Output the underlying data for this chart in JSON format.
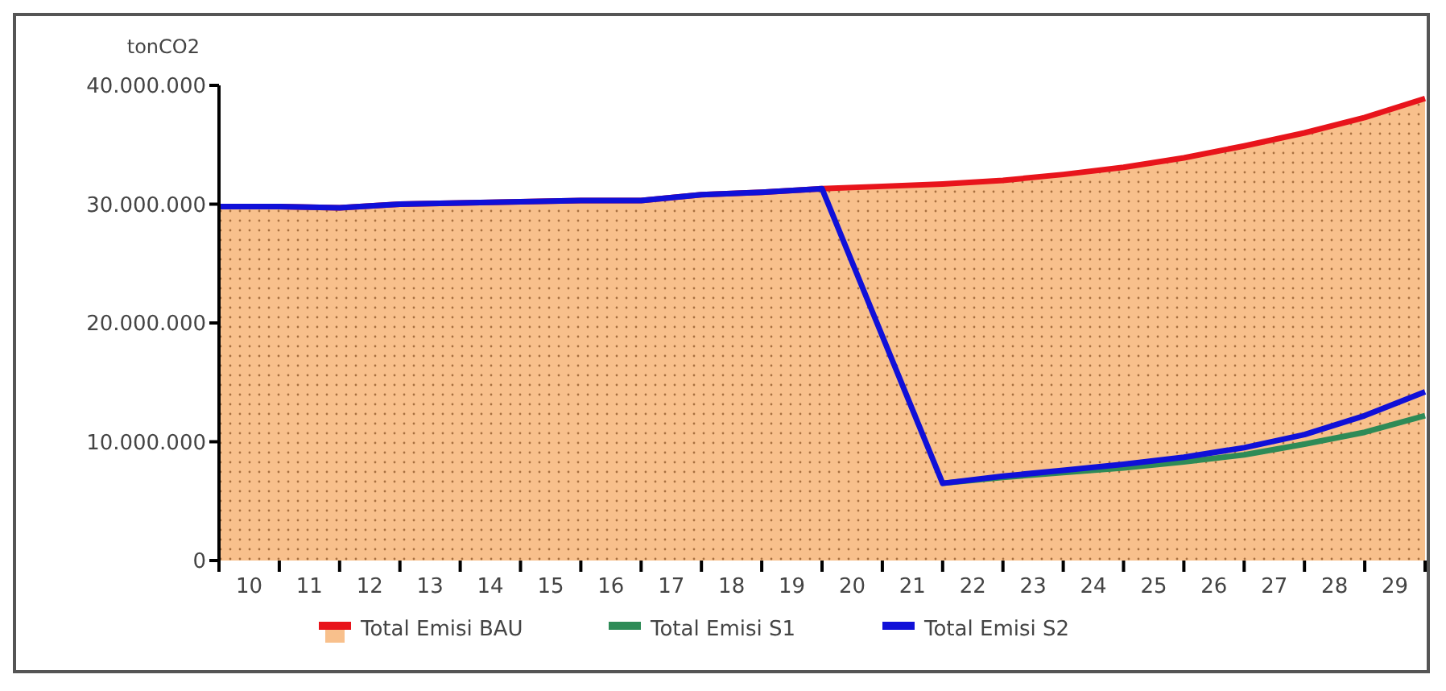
{
  "chart_data": {
    "type": "line",
    "ylabel": "tonCO2",
    "xlim": [
      9.5,
      29.5
    ],
    "x": [
      9.5,
      10.5,
      11.5,
      12.5,
      13.5,
      14.5,
      15.5,
      16.5,
      17.5,
      18.5,
      19.5,
      20.5,
      21.5,
      22.5,
      23.5,
      24.5,
      25.5,
      26.5,
      27.5,
      28.5,
      29.5
    ],
    "xticks": [
      {
        "value": 9.5,
        "label": null
      },
      10,
      {
        "value": 10.5,
        "label": null
      },
      11,
      {
        "value": 11.5,
        "label": null
      },
      12,
      {
        "value": 12.5,
        "label": null
      },
      13,
      {
        "value": 13.5,
        "label": null
      },
      14,
      {
        "value": 14.5,
        "label": null
      },
      15,
      {
        "value": 15.5,
        "label": null
      },
      16,
      {
        "value": 16.5,
        "label": null
      },
      17,
      {
        "value": 17.5,
        "label": null
      },
      18,
      {
        "value": 18.5,
        "label": null
      },
      19,
      {
        "value": 19.5,
        "label": null
      },
      20,
      {
        "value": 20.5,
        "label": null
      },
      21,
      {
        "value": 21.5,
        "label": null
      },
      22,
      {
        "value": 22.5,
        "label": null
      },
      23,
      {
        "value": 23.5,
        "label": null
      },
      24,
      {
        "value": 24.5,
        "label": null
      },
      25,
      {
        "value": 25.5,
        "label": null
      },
      26,
      {
        "value": 26.5,
        "label": null
      },
      27,
      {
        "value": 27.5,
        "label": null
      },
      28,
      {
        "value": 28.5,
        "label": null
      },
      29,
      {
        "value": 29.5,
        "label": null
      }
    ],
    "ylim": [
      0,
      40000000
    ],
    "yticks": [
      0,
      {
        "value": 10000000,
        "label": "10.000.000"
      },
      {
        "value": 20000000,
        "label": "20.000.000"
      },
      {
        "value": 30000000,
        "label": "30.000.000"
      },
      {
        "value": 40000000,
        "label": "40.000.000"
      }
    ],
    "legend": "bottom",
    "grid": false,
    "marker": "none",
    "line_style": "solid",
    "series": [
      {
        "name": "Total Emisi BAU",
        "type": "area",
        "color": "#e8141b",
        "values": [
          29800000,
          29800000,
          29700000,
          30000000,
          30100000,
          30200000,
          30300000,
          30300000,
          30800000,
          31000000,
          31300000,
          31500000,
          31700000,
          32000000,
          32500000,
          33100000,
          33900000,
          34900000,
          36000000,
          37300000,
          38900000
        ]
      },
      {
        "name": "Total Emisi S1",
        "color": "#2e8b57",
        "values": [
          null,
          null,
          null,
          null,
          null,
          null,
          null,
          null,
          null,
          null,
          null,
          null,
          6500000,
          7000000,
          7400000,
          7800000,
          8300000,
          8900000,
          9800000,
          10800000,
          12200000
        ]
      },
      {
        "name": "Total Emisi S2",
        "color": "#1010d8",
        "values": [
          29800000,
          29800000,
          29700000,
          30000000,
          30100000,
          30200000,
          30300000,
          30300000,
          30800000,
          31000000,
          31300000,
          18900000,
          6500000,
          7100000,
          7600000,
          8100000,
          8700000,
          9500000,
          10600000,
          12200000,
          14200000
        ]
      }
    ]
  }
}
